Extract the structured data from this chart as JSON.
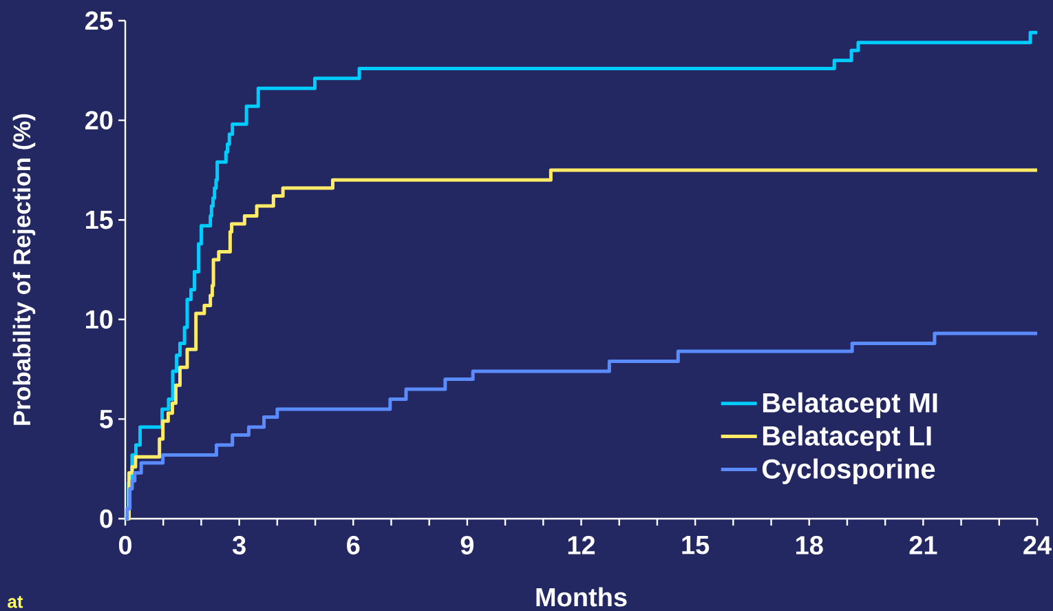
{
  "chart_data": {
    "type": "step",
    "xlabel": "Months",
    "ylabel": "Probability of Rejection (%)",
    "xlim": [
      0,
      24
    ],
    "ylim": [
      0,
      25
    ],
    "xticks": [
      0,
      {
        "value": 1,
        "label": null
      },
      {
        "value": 2,
        "label": null
      },
      3,
      {
        "value": 4,
        "label": null
      },
      {
        "value": 5,
        "label": null
      },
      6,
      {
        "value": 7,
        "label": null
      },
      {
        "value": 8,
        "label": null
      },
      9,
      {
        "value": 10,
        "label": null
      },
      {
        "value": 11,
        "label": null
      },
      12,
      {
        "value": 13,
        "label": null
      },
      {
        "value": 14,
        "label": null
      },
      15,
      {
        "value": 16,
        "label": null
      },
      {
        "value": 17,
        "label": null
      },
      18,
      {
        "value": 19,
        "label": null
      },
      {
        "value": 20,
        "label": null
      },
      21,
      {
        "value": 22,
        "label": null
      },
      {
        "value": 23,
        "label": null
      },
      24
    ],
    "yticks": [
      0,
      5,
      10,
      15,
      20,
      25
    ],
    "grid": false,
    "legend": "bottom right",
    "marker": "none",
    "line_style": "solid",
    "series": [
      {
        "name": "Belatacept MI",
        "color": "#00ccff",
        "x": [
          0,
          0.09,
          0.18,
          0.28,
          0.39,
          0.97,
          1.14,
          1.25,
          1.35,
          1.44,
          1.56,
          1.63,
          1.73,
          1.82,
          1.93,
          2.0,
          2.24,
          2.27,
          2.31,
          2.35,
          2.39,
          2.42,
          2.65,
          2.69,
          2.74,
          2.82,
          3.19,
          3.5,
          4.99,
          6.16,
          18.66,
          19.11,
          19.29,
          23.82,
          24
        ],
        "values": [
          0,
          1.8,
          3.2,
          3.7,
          4.6,
          5.5,
          6.0,
          7.4,
          8.2,
          8.8,
          9.6,
          11.0,
          11.5,
          12.4,
          13.8,
          14.7,
          15.2,
          15.7,
          16.1,
          16.6,
          17.0,
          17.9,
          18.4,
          18.8,
          19.3,
          19.8,
          20.7,
          21.6,
          22.1,
          22.6,
          23.0,
          23.5,
          23.9,
          24.4,
          24.4
        ]
      },
      {
        "name": "Belatacept LI",
        "color": "#ffeb66",
        "x": [
          0,
          0.1,
          0.18,
          0.27,
          0.9,
          0.99,
          1.13,
          1.24,
          1.33,
          1.44,
          1.63,
          1.86,
          2.08,
          2.24,
          2.29,
          2.32,
          2.46,
          2.76,
          2.8,
          3.14,
          3.46,
          3.9,
          4.15,
          5.46,
          11.2,
          24
        ],
        "values": [
          0,
          2.3,
          2.6,
          3.1,
          4.0,
          4.9,
          5.3,
          5.8,
          6.7,
          7.6,
          8.5,
          10.3,
          10.7,
          11.2,
          11.7,
          13.0,
          13.4,
          14.4,
          14.8,
          15.2,
          15.7,
          16.2,
          16.6,
          17.0,
          17.5,
          17.5
        ]
      },
      {
        "name": "Cyclosporine",
        "color": "#5b8cff",
        "x": [
          0,
          0.05,
          0.12,
          0.18,
          0.25,
          0.42,
          0.99,
          2.4,
          2.82,
          3.25,
          3.65,
          4.0,
          6.97,
          7.39,
          8.42,
          9.15,
          12.74,
          14.55,
          19.13,
          21.3,
          24
        ],
        "values": [
          0,
          0.5,
          1.5,
          1.9,
          2.3,
          2.8,
          3.2,
          3.7,
          4.2,
          4.6,
          5.1,
          5.5,
          6.0,
          6.5,
          7.0,
          7.4,
          7.9,
          8.4,
          8.8,
          9.3,
          9.3
        ]
      }
    ],
    "annotations": [
      "at"
    ]
  }
}
